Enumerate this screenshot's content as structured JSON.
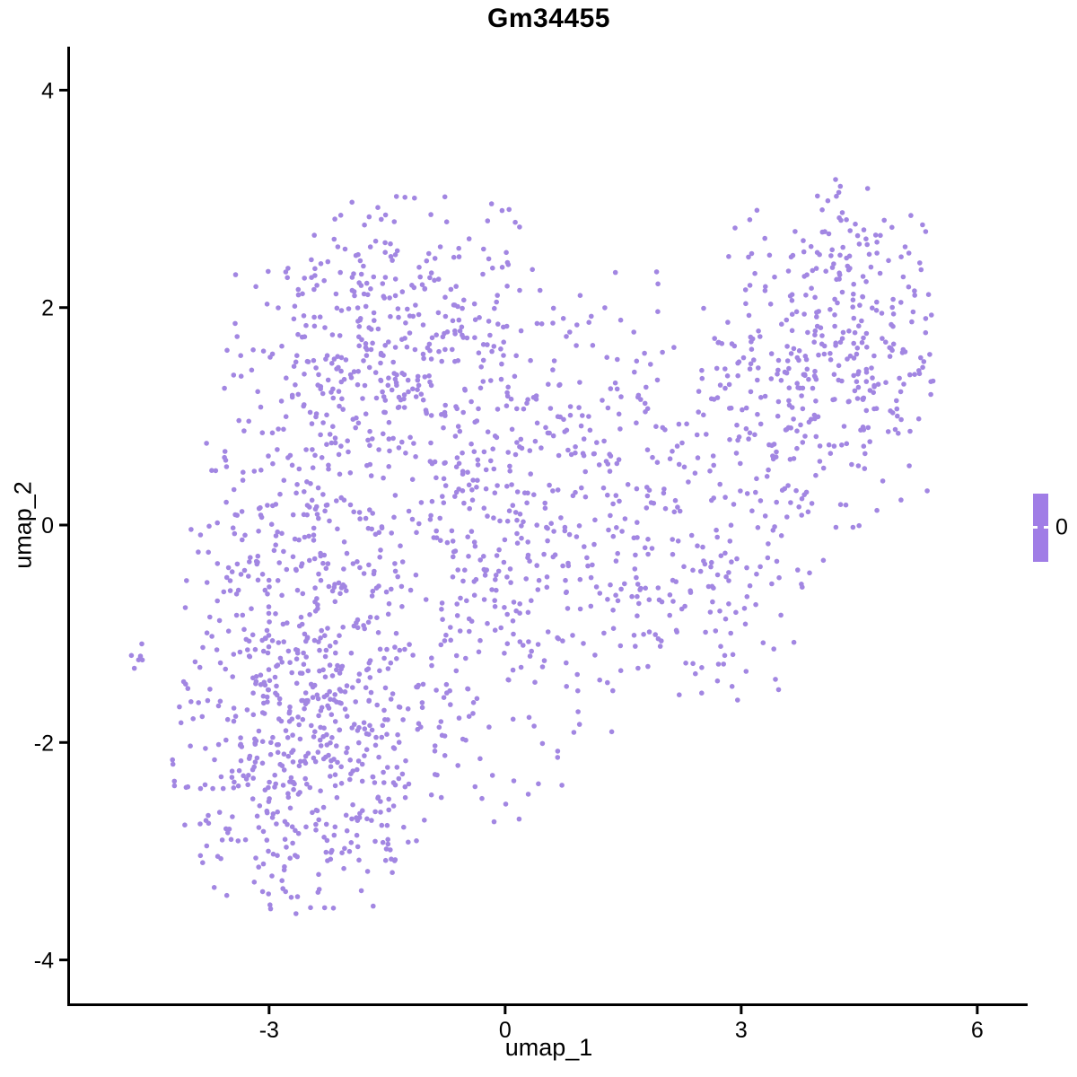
{
  "chart_data": {
    "type": "scatter",
    "title": "Gm34455",
    "xlabel": "umap_1",
    "ylabel": "umap_2",
    "x_range": [
      -5.53,
      6.64
    ],
    "y_range": [
      -4.4,
      4.4
    ],
    "x_ticks": [
      -3,
      0,
      3,
      6
    ],
    "y_ticks": [
      -4,
      -2,
      0,
      2,
      4
    ],
    "grid": false,
    "axis_color": "#000000",
    "background_color": "#ffffff",
    "point_color": "#A286E2",
    "point_radius_px": 2.8,
    "n_points_estimate": 2170,
    "points_are_procedural_approximation": true,
    "clusters": [
      {
        "cx": -2.55,
        "cy": -2.15,
        "sx": 0.85,
        "sy": 0.72,
        "n": 430
      },
      {
        "cx": -2.75,
        "cy": -0.35,
        "sx": 0.62,
        "sy": 0.85,
        "n": 260
      },
      {
        "cx": -1.35,
        "cy": 1.65,
        "sx": 1.05,
        "sy": 0.72,
        "n": 420
      },
      {
        "cx": -0.35,
        "cy": -0.75,
        "sx": 1.05,
        "sy": 0.95,
        "n": 330
      },
      {
        "cx": 1.1,
        "cy": 0.5,
        "sx": 0.95,
        "sy": 0.95,
        "n": 210
      },
      {
        "cx": 4.3,
        "cy": 1.7,
        "sx": 0.78,
        "sy": 0.88,
        "n": 330
      },
      {
        "cx": 2.7,
        "cy": -0.55,
        "sx": 0.7,
        "sy": 0.6,
        "n": 120
      },
      {
        "cx": 3.3,
        "cy": 1.1,
        "sx": 0.5,
        "sy": 0.5,
        "n": 70
      },
      {
        "cx": -4.66,
        "cy": -1.22,
        "sx": 0.06,
        "sy": 0.14,
        "n": 6
      },
      {
        "cx": -4.05,
        "cy": -1.45,
        "sx": 0.07,
        "sy": 0.05,
        "n": 3
      }
    ],
    "data_bounds": {
      "x_min": -4.8,
      "x_max": 5.5,
      "y_min": -3.62,
      "y_max": 3.18
    },
    "legend": {
      "label": "0",
      "bar_color": "#A07DE6",
      "position": "right"
    }
  }
}
